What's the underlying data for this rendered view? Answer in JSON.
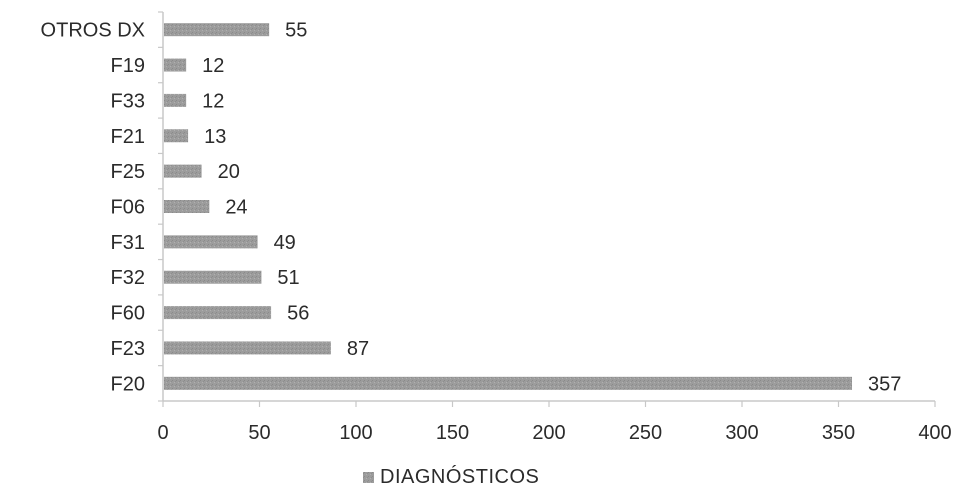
{
  "chart_data": {
    "type": "bar",
    "orientation": "horizontal",
    "categories": [
      "F20",
      "F23",
      "F60",
      "F32",
      "F31",
      "F06",
      "F25",
      "F21",
      "F33",
      "F19",
      "OTROS DX"
    ],
    "series": [
      {
        "name": "DIAGNÓSTICOS",
        "values": [
          357,
          87,
          56,
          51,
          49,
          24,
          20,
          13,
          12,
          12,
          55
        ]
      }
    ],
    "xlim": [
      0,
      400
    ],
    "xticks": [
      0,
      50,
      100,
      150,
      200,
      250,
      300,
      350,
      400
    ],
    "grid": false,
    "legend": "bottom",
    "data_labels": true,
    "bar_color": "#9a9a9a",
    "axis_color": "#c8c8c8",
    "text_color": "#2b2b2b"
  }
}
